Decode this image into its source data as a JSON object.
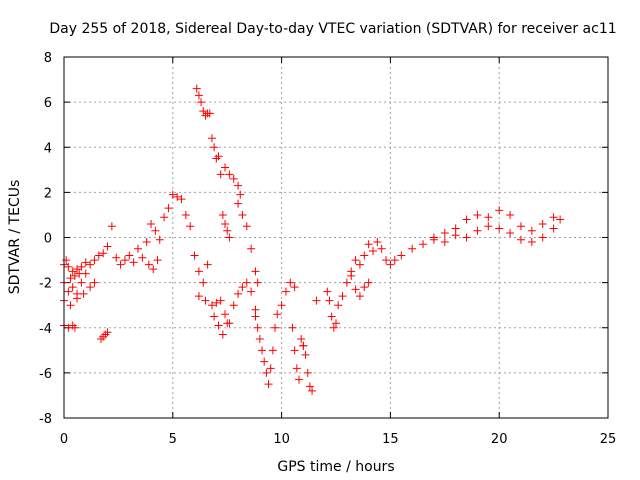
{
  "chart_data": {
    "type": "scatter",
    "title": "Day 255 of 2018, Sidereal Day-to-day VTEC variation (SDTVAR) for receiver ac11",
    "xlabel": "GPS time / hours",
    "ylabel": "SDTVAR / TECUs",
    "xlim": [
      0,
      25
    ],
    "ylim": [
      -8,
      8
    ],
    "xticks": [
      0,
      5,
      10,
      15,
      20,
      25
    ],
    "yticks": [
      -8,
      -6,
      -4,
      -2,
      0,
      2,
      4,
      6,
      8
    ],
    "grid": true,
    "marker": "+",
    "series": [
      {
        "name": "ac11",
        "color": "#ff0000",
        "x": [
          0.0,
          0.1,
          0.2,
          0.3,
          0.4,
          0.5,
          0.6,
          0.7,
          0.8,
          1.0,
          1.2,
          1.4,
          1.6,
          1.8,
          2.0,
          0.0,
          0.2,
          0.4,
          0.6,
          0.8,
          1.0,
          0.0,
          0.3,
          0.6,
          0.9,
          1.2,
          1.4,
          0.0,
          0.2,
          0.4,
          0.5,
          2.2,
          2.4,
          2.6,
          2.8,
          3.0,
          3.2,
          3.4,
          3.6,
          3.8,
          4.0,
          4.2,
          4.4,
          4.6,
          4.8,
          5.0,
          5.2,
          5.4,
          5.6,
          5.8,
          6.0,
          6.2,
          6.4,
          6.6,
          3.9,
          4.1,
          4.3,
          1.7,
          1.8,
          1.9,
          2.0,
          6.1,
          6.2,
          6.3,
          6.4,
          6.5,
          6.6,
          6.7,
          6.8,
          6.9,
          7.0,
          7.1,
          7.2,
          7.4,
          7.6,
          7.8,
          8.0,
          8.1,
          7.3,
          7.4,
          7.5,
          7.6,
          8.0,
          8.2,
          8.4,
          8.6,
          8.8,
          8.9,
          6.2,
          6.5,
          6.8,
          7.0,
          7.2,
          7.4,
          7.6,
          7.8,
          8.0,
          8.2,
          8.4,
          8.6,
          8.8,
          6.9,
          7.1,
          7.3,
          7.5,
          8.8,
          8.9,
          9.0,
          9.1,
          9.2,
          9.3,
          9.4,
          9.5,
          9.6,
          9.7,
          9.8,
          10.0,
          10.2,
          10.4,
          10.6,
          10.5,
          10.6,
          10.7,
          10.8,
          10.9,
          11.0,
          11.1,
          11.2,
          11.3,
          11.4,
          11.0,
          11.6,
          12.1,
          12.2,
          12.3,
          12.4,
          12.5,
          12.6,
          12.8,
          13.0,
          13.2,
          13.4,
          13.6,
          13.8,
          14.0,
          14.2,
          14.4,
          14.6,
          14.8,
          15.0,
          13.2,
          13.4,
          13.6,
          13.8,
          14.0,
          15.2,
          15.5,
          16.0,
          16.5,
          17.0,
          17.5,
          18.0,
          18.5,
          19.0,
          19.5,
          20.0,
          20.5,
          21.0,
          21.5,
          22.0,
          22.5,
          22.8,
          17.0,
          17.5,
          18.0,
          18.5,
          19.0,
          19.5,
          20.0,
          20.5,
          21.0,
          21.5,
          22.0,
          22.5
        ],
        "y": [
          -1.2,
          -1.0,
          -1.3,
          -1.8,
          -1.5,
          -1.7,
          -1.4,
          -1.6,
          -1.3,
          -1.1,
          -1.2,
          -1.0,
          -0.8,
          -0.7,
          -0.4,
          -2.0,
          -2.4,
          -2.2,
          -2.5,
          -2.0,
          -1.6,
          -2.8,
          -3.0,
          -2.7,
          -2.5,
          -2.2,
          -2.0,
          -3.9,
          -4.0,
          -3.9,
          -4.0,
          0.5,
          -0.9,
          -1.2,
          -1.0,
          -0.8,
          -1.1,
          -0.5,
          -0.9,
          -0.2,
          0.6,
          0.3,
          -0.1,
          0.9,
          1.3,
          1.9,
          1.8,
          1.7,
          1.0,
          0.5,
          -0.8,
          -1.5,
          -2.0,
          -1.2,
          -1.2,
          -1.4,
          -1.0,
          -4.5,
          -4.4,
          -4.3,
          -4.2,
          6.6,
          6.3,
          6.0,
          5.6,
          5.4,
          5.5,
          5.5,
          4.4,
          4.0,
          3.5,
          3.6,
          2.8,
          3.1,
          2.8,
          2.6,
          2.3,
          1.9,
          1.0,
          0.6,
          0.3,
          0.0,
          1.5,
          1.0,
          0.5,
          -0.5,
          -1.5,
          -2.0,
          -2.6,
          -2.8,
          -3.0,
          -2.9,
          -2.8,
          -3.4,
          -3.8,
          -3.0,
          -2.5,
          -2.2,
          -2.0,
          -2.4,
          -3.2,
          -3.5,
          -3.9,
          -4.3,
          -3.8,
          -3.5,
          -4.0,
          -4.5,
          -5.0,
          -5.5,
          -6.0,
          -6.5,
          -5.8,
          -5.0,
          -4.0,
          -3.4,
          -3.0,
          -2.4,
          -2.0,
          -2.2,
          -4.0,
          -5.0,
          -5.8,
          -6.3,
          -4.5,
          -4.8,
          -5.2,
          -6.0,
          -6.6,
          -6.8,
          -4.8,
          -2.8,
          -2.4,
          -2.8,
          -3.5,
          -4.0,
          -3.8,
          -3.0,
          -2.6,
          -2.0,
          -1.5,
          -1.0,
          -1.2,
          -0.8,
          -0.3,
          -0.6,
          -0.2,
          -0.5,
          -1.0,
          -1.2,
          -1.7,
          -2.3,
          -2.6,
          -2.2,
          -2.0,
          -1.0,
          -0.8,
          -0.5,
          -0.3,
          0.0,
          0.2,
          0.4,
          0.8,
          1.0,
          0.9,
          1.2,
          1.0,
          0.5,
          0.3,
          0.6,
          0.9,
          0.8,
          -0.1,
          -0.2,
          0.1,
          0.0,
          0.3,
          0.5,
          0.4,
          0.2,
          -0.1,
          -0.2,
          0.0,
          0.4
        ]
      }
    ]
  }
}
